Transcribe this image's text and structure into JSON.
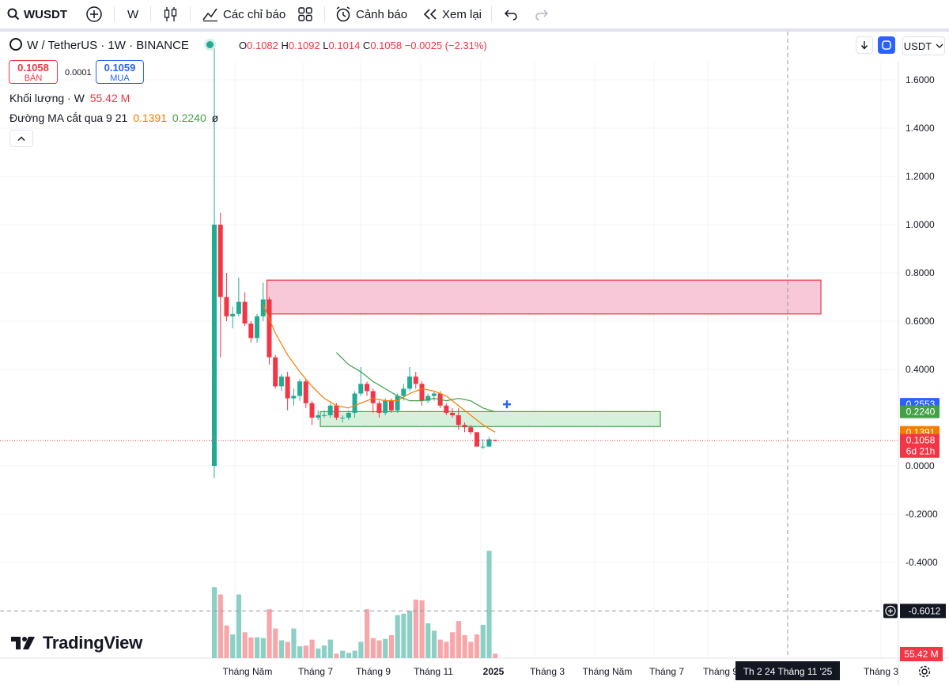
{
  "toolbar": {
    "symbol": "WUSDT",
    "interval": "W",
    "indicators_label": "Các chỉ báo",
    "alerts_label": "Cảnh báo",
    "replay_label": "Xem lại"
  },
  "legend": {
    "title": "W / TetherUS · 1W · BINANCE",
    "open_key": "O",
    "open": "0.1082",
    "high_key": "H",
    "high": "0.1092",
    "low_key": "L",
    "low": "0.1014",
    "close_key": "C",
    "close": "0.1058",
    "change": "−0.0025 (−2.31%)",
    "sell_price": "0.1058",
    "sell_label": "BÁN",
    "spread": "0.0001",
    "buy_price": "0.1059",
    "buy_label": "MUA",
    "volume_label": "Khối lượng · W",
    "volume_value": "55.42 M",
    "ma_label": "Đường MA cắt qua 9 21",
    "ma_fast": "0.1391",
    "ma_slow": "0.2240",
    "ma_extra": "ø"
  },
  "currency": "USDT",
  "brand": "TradingView",
  "colors": {
    "up": "#22ab94",
    "down": "#f23645",
    "ma_fast": "#f57c00",
    "ma_slow": "#43a047",
    "vol_up": "#8ccfc5",
    "vol_down": "#f7a6a9",
    "zone_red": "#f8c8d8",
    "zone_green": "#d7f0dc",
    "blue": "#2962ff"
  },
  "chart_data": {
    "type": "candlestick",
    "symbol": "W / TetherUS",
    "interval": "1W",
    "exchange": "BINANCE",
    "y_ticks": [
      "1.6000",
      "1.4000",
      "1.2000",
      "1.0000",
      "0.8000",
      "0.6000",
      "0.4000",
      "0.0000",
      "-0.2000",
      "-0.4000"
    ],
    "y_tick_values": [
      1.6,
      1.4,
      1.2,
      1.0,
      0.8,
      0.6,
      0.4,
      0.0,
      -0.2,
      -0.4
    ],
    "ylim": [
      -0.75,
      1.74
    ],
    "x_labels": [
      "Tháng Năm",
      "Tháng 7",
      "Tháng 9",
      "Tháng 11",
      "2025",
      "Tháng 3",
      "Tháng Năm",
      "Tháng 7",
      "Tháng 9",
      "Tháng 3"
    ],
    "crosshair_date": "Th 2 24 Tháng 11 '25",
    "crosshair_price": "-0.6012",
    "price_labels": [
      {
        "text": "0.2553",
        "value": 0.2553,
        "color": "#2962ff"
      },
      {
        "text": "0.2240",
        "value": 0.224,
        "color": "#43a047"
      },
      {
        "text": "0.1391",
        "value": 0.1391,
        "color": "#f57c00"
      },
      {
        "text": "0.1058",
        "value": 0.1058,
        "color": "#f23645"
      }
    ],
    "countdown": "6d 21h",
    "volume_label": "55.42 M",
    "candles": [
      {
        "o": 0.0,
        "h": 1.74,
        "l": -0.05,
        "c": 1.0
      },
      {
        "o": 1.0,
        "h": 1.05,
        "l": 0.45,
        "c": 0.7
      },
      {
        "o": 0.7,
        "h": 0.8,
        "l": 0.6,
        "c": 0.62
      },
      {
        "o": 0.62,
        "h": 0.66,
        "l": 0.57,
        "c": 0.63
      },
      {
        "o": 0.63,
        "h": 0.78,
        "l": 0.62,
        "c": 0.68
      },
      {
        "o": 0.68,
        "h": 0.72,
        "l": 0.58,
        "c": 0.59
      },
      {
        "o": 0.59,
        "h": 0.6,
        "l": 0.51,
        "c": 0.53
      },
      {
        "o": 0.53,
        "h": 0.63,
        "l": 0.51,
        "c": 0.62
      },
      {
        "o": 0.62,
        "h": 0.76,
        "l": 0.6,
        "c": 0.69
      },
      {
        "o": 0.69,
        "h": 0.7,
        "l": 0.42,
        "c": 0.45
      },
      {
        "o": 0.45,
        "h": 0.46,
        "l": 0.32,
        "c": 0.33
      },
      {
        "o": 0.33,
        "h": 0.38,
        "l": 0.31,
        "c": 0.37
      },
      {
        "o": 0.37,
        "h": 0.39,
        "l": 0.23,
        "c": 0.28
      },
      {
        "o": 0.28,
        "h": 0.32,
        "l": 0.25,
        "c": 0.29
      },
      {
        "o": 0.29,
        "h": 0.36,
        "l": 0.27,
        "c": 0.35
      },
      {
        "o": 0.35,
        "h": 0.36,
        "l": 0.24,
        "c": 0.26
      },
      {
        "o": 0.26,
        "h": 0.27,
        "l": 0.17,
        "c": 0.2
      },
      {
        "o": 0.2,
        "h": 0.23,
        "l": 0.19,
        "c": 0.21
      },
      {
        "o": 0.21,
        "h": 0.23,
        "l": 0.2,
        "c": 0.21
      },
      {
        "o": 0.21,
        "h": 0.26,
        "l": 0.2,
        "c": 0.25
      },
      {
        "o": 0.25,
        "h": 0.26,
        "l": 0.19,
        "c": 0.2
      },
      {
        "o": 0.2,
        "h": 0.21,
        "l": 0.18,
        "c": 0.2
      },
      {
        "o": 0.2,
        "h": 0.23,
        "l": 0.19,
        "c": 0.22
      },
      {
        "o": 0.22,
        "h": 0.31,
        "l": 0.2,
        "c": 0.3
      },
      {
        "o": 0.3,
        "h": 0.41,
        "l": 0.29,
        "c": 0.34
      },
      {
        "o": 0.34,
        "h": 0.35,
        "l": 0.29,
        "c": 0.31
      },
      {
        "o": 0.31,
        "h": 0.32,
        "l": 0.22,
        "c": 0.26
      },
      {
        "o": 0.26,
        "h": 0.27,
        "l": 0.2,
        "c": 0.22
      },
      {
        "o": 0.22,
        "h": 0.28,
        "l": 0.21,
        "c": 0.27
      },
      {
        "o": 0.27,
        "h": 0.28,
        "l": 0.22,
        "c": 0.23
      },
      {
        "o": 0.23,
        "h": 0.3,
        "l": 0.22,
        "c": 0.29
      },
      {
        "o": 0.29,
        "h": 0.34,
        "l": 0.27,
        "c": 0.32
      },
      {
        "o": 0.32,
        "h": 0.41,
        "l": 0.31,
        "c": 0.37
      },
      {
        "o": 0.37,
        "h": 0.39,
        "l": 0.32,
        "c": 0.34
      },
      {
        "o": 0.34,
        "h": 0.35,
        "l": 0.25,
        "c": 0.27
      },
      {
        "o": 0.27,
        "h": 0.3,
        "l": 0.26,
        "c": 0.29
      },
      {
        "o": 0.29,
        "h": 0.31,
        "l": 0.27,
        "c": 0.3
      },
      {
        "o": 0.3,
        "h": 0.31,
        "l": 0.24,
        "c": 0.25
      },
      {
        "o": 0.25,
        "h": 0.26,
        "l": 0.21,
        "c": 0.22
      },
      {
        "o": 0.22,
        "h": 0.24,
        "l": 0.2,
        "c": 0.21
      },
      {
        "o": 0.21,
        "h": 0.24,
        "l": 0.15,
        "c": 0.17
      },
      {
        "o": 0.17,
        "h": 0.18,
        "l": 0.14,
        "c": 0.16
      },
      {
        "o": 0.16,
        "h": 0.17,
        "l": 0.13,
        "c": 0.14
      },
      {
        "o": 0.14,
        "h": 0.14,
        "l": 0.08,
        "c": 0.08
      },
      {
        "o": 0.08,
        "h": 0.11,
        "l": 0.07,
        "c": 0.08
      },
      {
        "o": 0.08,
        "h": 0.12,
        "l": 0.08,
        "c": 0.11
      },
      {
        "o": 0.1082,
        "h": 0.1092,
        "l": 0.1014,
        "c": 0.1058
      }
    ],
    "ma_fast_series": [
      {
        "i": 8,
        "v": 0.67
      },
      {
        "i": 10,
        "v": 0.55
      },
      {
        "i": 12,
        "v": 0.46
      },
      {
        "i": 14,
        "v": 0.39
      },
      {
        "i": 16,
        "v": 0.33
      },
      {
        "i": 18,
        "v": 0.28
      },
      {
        "i": 20,
        "v": 0.25
      },
      {
        "i": 22,
        "v": 0.24
      },
      {
        "i": 24,
        "v": 0.26
      },
      {
        "i": 26,
        "v": 0.28
      },
      {
        "i": 28,
        "v": 0.27
      },
      {
        "i": 30,
        "v": 0.27
      },
      {
        "i": 32,
        "v": 0.3
      },
      {
        "i": 34,
        "v": 0.32
      },
      {
        "i": 36,
        "v": 0.31
      },
      {
        "i": 38,
        "v": 0.29
      },
      {
        "i": 40,
        "v": 0.25
      },
      {
        "i": 42,
        "v": 0.21
      },
      {
        "i": 44,
        "v": 0.17
      },
      {
        "i": 46,
        "v": 0.14
      }
    ],
    "ma_slow_series": [
      {
        "i": 20,
        "v": 0.47
      },
      {
        "i": 22,
        "v": 0.42
      },
      {
        "i": 24,
        "v": 0.39
      },
      {
        "i": 26,
        "v": 0.35
      },
      {
        "i": 28,
        "v": 0.32
      },
      {
        "i": 30,
        "v": 0.29
      },
      {
        "i": 32,
        "v": 0.27
      },
      {
        "i": 34,
        "v": 0.27
      },
      {
        "i": 36,
        "v": 0.28
      },
      {
        "i": 38,
        "v": 0.27
      },
      {
        "i": 40,
        "v": 0.28
      },
      {
        "i": 42,
        "v": 0.27
      },
      {
        "i": 44,
        "v": 0.24
      },
      {
        "i": 46,
        "v": 0.224
      }
    ],
    "volume_rel": [
      0.96,
      0.86,
      0.44,
      0.32,
      0.86,
      0.35,
      0.28,
      0.28,
      0.27,
      0.66,
      0.4,
      0.24,
      0.22,
      0.4,
      0.16,
      0.17,
      0.25,
      0.13,
      0.17,
      0.25,
      0.06,
      0.1,
      0.07,
      0.1,
      0.22,
      0.66,
      0.27,
      0.24,
      0.26,
      0.31,
      0.58,
      0.6,
      0.64,
      0.79,
      0.78,
      0.47,
      0.37,
      0.25,
      0.22,
      0.35,
      0.5,
      0.31,
      0.22,
      0.32,
      0.45,
      1.45,
      0.06
    ],
    "zones": [
      {
        "type": "supply",
        "from_index": 9,
        "to": "Th 2 24 Tháng 11 '25",
        "top": 0.77,
        "bottom": 0.63
      },
      {
        "type": "demand",
        "from_index": 19,
        "to_index": 76,
        "top": 0.225,
        "bottom": 0.163
      }
    ]
  }
}
